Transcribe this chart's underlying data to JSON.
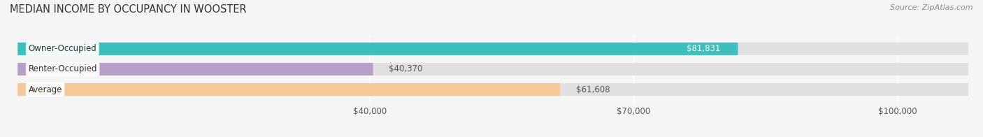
{
  "title": "MEDIAN INCOME BY OCCUPANCY IN WOOSTER",
  "source": "Source: ZipAtlas.com",
  "categories": [
    "Owner-Occupied",
    "Renter-Occupied",
    "Average"
  ],
  "values": [
    81831,
    40370,
    61608
  ],
  "labels": [
    "$81,831",
    "$40,370",
    "$61,608"
  ],
  "bar_colors": [
    "#3bbfbf",
    "#b89fc8",
    "#f5c897"
  ],
  "x_ticks": [
    40000,
    70000,
    100000
  ],
  "x_tick_labels": [
    "$40,000",
    "$70,000",
    "$100,000"
  ],
  "xmin": 0,
  "xmax": 108000,
  "bar_height": 0.62,
  "fig_bg_color": "#f5f5f5",
  "bar_bg_color": "#e0e0e0",
  "title_fontsize": 10.5,
  "source_fontsize": 8,
  "label_fontsize": 8.5,
  "value_fontsize": 8.5,
  "tick_fontsize": 8.5,
  "cat_label_bg": "#ffffff",
  "grid_color": "#ffffff",
  "value_inside_color": "#ffffff",
  "value_outside_color": "#555555"
}
